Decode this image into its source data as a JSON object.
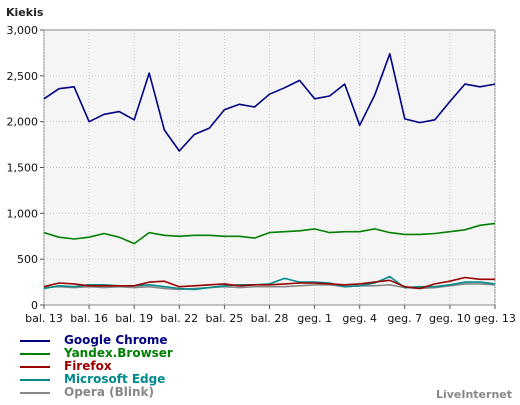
{
  "brand": "LiveInternet",
  "chart_data": {
    "type": "line",
    "title": "",
    "xlabel": "",
    "ylabel": "Kiekis",
    "ylim": [
      0,
      3000
    ],
    "yticks": [
      0,
      500,
      1000,
      1500,
      2000,
      2500,
      3000
    ],
    "ytick_labels": [
      "0",
      "500",
      "1,000",
      "1,500",
      "2,000",
      "2,500",
      "3,000"
    ],
    "grid": true,
    "legend_placement": "bottom-left",
    "x": [
      "bal. 13",
      "bal. 14",
      "bal. 15",
      "bal. 16",
      "bal. 17",
      "bal. 18",
      "bal. 19",
      "bal. 20",
      "bal. 21",
      "bal. 22",
      "bal. 23",
      "bal. 24",
      "bal. 25",
      "bal. 26",
      "bal. 27",
      "bal. 28",
      "bal. 29",
      "bal. 30",
      "geg. 1",
      "geg. 2",
      "geg. 3",
      "geg. 4",
      "geg. 5",
      "geg. 6",
      "geg. 7",
      "geg. 8",
      "geg. 9",
      "geg. 10",
      "geg. 11",
      "geg. 12",
      "geg. 13"
    ],
    "xtick_labels": [
      "bal. 13",
      "bal. 16",
      "bal. 19",
      "bal. 22",
      "bal. 25",
      "bal. 28",
      "geg. 1",
      "geg. 4",
      "geg. 7",
      "geg. 10",
      "geg. 13"
    ],
    "series": [
      {
        "name": "Google Chrome",
        "color": "#000080",
        "values": [
          2250,
          2360,
          2380,
          2000,
          2080,
          2110,
          2020,
          2530,
          1910,
          1680,
          1860,
          1930,
          2130,
          2190,
          2160,
          2300,
          2370,
          2450,
          2250,
          2280,
          2410,
          1960,
          2290,
          2740,
          2030,
          1990,
          2020,
          2220,
          2410,
          2380,
          2410
        ]
      },
      {
        "name": "Yandex.Browser",
        "color": "#008000",
        "values": [
          790,
          740,
          720,
          740,
          780,
          740,
          670,
          790,
          760,
          750,
          760,
          760,
          750,
          750,
          730,
          790,
          800,
          810,
          830,
          790,
          800,
          800,
          830,
          790,
          770,
          770,
          780,
          800,
          820,
          870,
          890
        ]
      },
      {
        "name": "Firefox",
        "color": "#990000",
        "values": [
          200,
          240,
          230,
          210,
          210,
          210,
          210,
          250,
          260,
          200,
          210,
          220,
          230,
          210,
          220,
          220,
          230,
          240,
          240,
          230,
          220,
          230,
          250,
          270,
          200,
          180,
          230,
          260,
          300,
          280,
          280
        ]
      },
      {
        "name": "Microsoft Edge",
        "color": "#008b8b",
        "values": [
          180,
          210,
          200,
          220,
          220,
          210,
          210,
          220,
          200,
          180,
          170,
          190,
          210,
          220,
          220,
          230,
          290,
          250,
          250,
          240,
          200,
          210,
          240,
          310,
          190,
          200,
          200,
          220,
          250,
          250,
          230
        ]
      },
      {
        "name": "Opera (Blink)",
        "color": "#888888",
        "values": [
          190,
          200,
          190,
          200,
          190,
          200,
          190,
          200,
          180,
          170,
          180,
          190,
          200,
          190,
          200,
          200,
          200,
          210,
          220,
          220,
          200,
          210,
          210,
          220,
          190,
          180,
          190,
          210,
          230,
          230,
          220
        ]
      }
    ]
  }
}
